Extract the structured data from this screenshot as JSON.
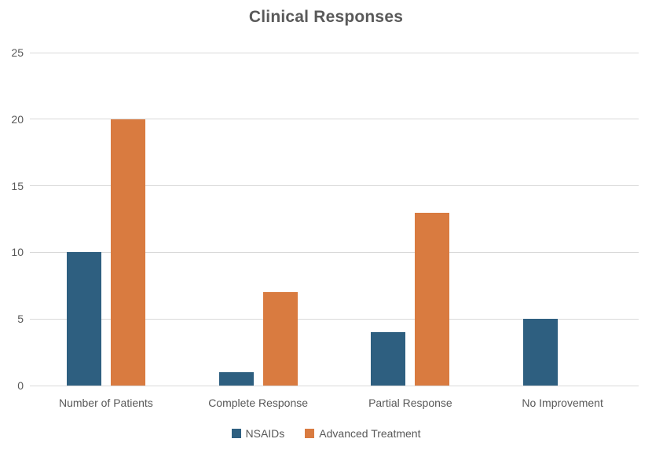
{
  "title": "Clinical Responses",
  "colors": {
    "nsaids": "#2e5f80",
    "advanced_treatment": "#d97b40",
    "gridline": "#d9d9d9",
    "text": "#595959"
  },
  "chart_data": {
    "type": "bar",
    "title": "Clinical Responses",
    "categories": [
      "Number of Patients",
      "Complete Response",
      "Partial Response",
      "No Improvement"
    ],
    "series": [
      {
        "name": "NSAIDs",
        "color": "#2e5f80",
        "values": [
          10,
          1,
          4,
          5
        ]
      },
      {
        "name": "Advanced Treatment",
        "color": "#d97b40",
        "values": [
          20,
          7,
          13,
          0
        ]
      }
    ],
    "xlabel": "",
    "ylabel": "",
    "ylim": [
      0,
      25
    ],
    "yticks": [
      0,
      5,
      10,
      15,
      20,
      25
    ],
    "grid": true,
    "legend_position": "bottom"
  }
}
